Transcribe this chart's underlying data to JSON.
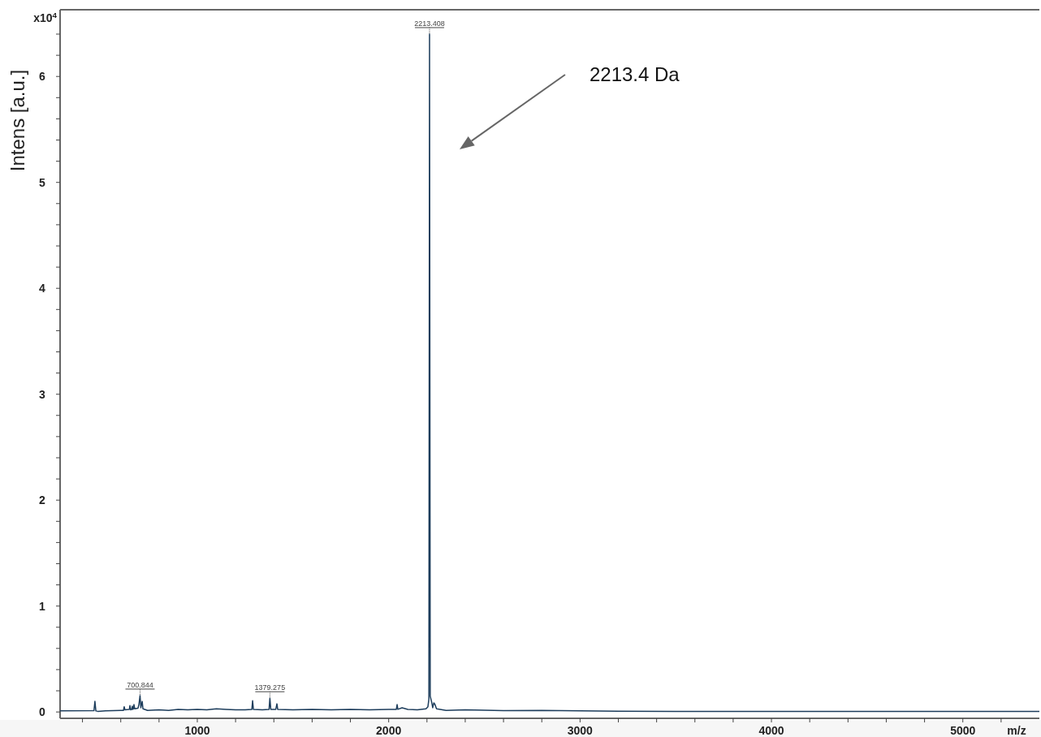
{
  "chart_data": {
    "type": "line",
    "ylabel": "Intens [a.u.]",
    "xlabel": "m/z",
    "color": "#1d3d5c",
    "marker": "none",
    "line_style": "solid",
    "xlim": [
      283,
      5400
    ],
    "xticks": [
      {
        "value": 400,
        "label": null
      },
      {
        "value": 600,
        "label": null
      },
      {
        "value": 800,
        "label": null
      },
      1000,
      {
        "value": 1200,
        "label": null
      },
      {
        "value": 1400,
        "label": null
      },
      {
        "value": 1600,
        "label": null
      },
      {
        "value": 1800,
        "label": null
      },
      2000,
      {
        "value": 2200,
        "label": null
      },
      {
        "value": 2400,
        "label": null
      },
      {
        "value": 2600,
        "label": null
      },
      {
        "value": 2800,
        "label": null
      },
      3000,
      {
        "value": 3200,
        "label": null
      },
      {
        "value": 3400,
        "label": null
      },
      {
        "value": 3600,
        "label": null
      },
      {
        "value": 3800,
        "label": null
      },
      4000,
      {
        "value": 4200,
        "label": null
      },
      {
        "value": 4400,
        "label": null
      },
      {
        "value": 4600,
        "label": null
      },
      {
        "value": 4800,
        "label": null
      },
      5000,
      {
        "value": 5200,
        "label": null
      }
    ],
    "ylim": [
      -0.06,
      6.63
    ],
    "yticks": [
      0,
      {
        "value": 0.2,
        "label": null
      },
      {
        "value": 0.4,
        "label": null
      },
      {
        "value": 0.6,
        "label": null
      },
      {
        "value": 0.8,
        "label": null
      },
      1,
      {
        "value": 1.2,
        "label": null
      },
      {
        "value": 1.4,
        "label": null
      },
      {
        "value": 1.6,
        "label": null
      },
      {
        "value": 1.8,
        "label": null
      },
      2,
      {
        "value": 2.2,
        "label": null
      },
      {
        "value": 2.4,
        "label": null
      },
      {
        "value": 2.6,
        "label": null
      },
      {
        "value": 2.8,
        "label": null
      },
      3,
      {
        "value": 3.2,
        "label": null
      },
      {
        "value": 3.4,
        "label": null
      },
      {
        "value": 3.6,
        "label": null
      },
      {
        "value": 3.8,
        "label": null
      },
      4,
      {
        "value": 4.2,
        "label": null
      },
      {
        "value": 4.4,
        "label": null
      },
      {
        "value": 4.6,
        "label": null
      },
      {
        "value": 4.8,
        "label": null
      },
      5,
      {
        "value": 5.2,
        "label": null
      },
      {
        "value": 5.4,
        "label": null
      },
      {
        "value": 5.6,
        "label": null
      },
      {
        "value": 5.8,
        "label": null
      },
      6,
      {
        "value": 6.2,
        "label": null
      },
      {
        "value": 6.4,
        "label": null
      }
    ],
    "x": [
      283,
      460,
      465,
      470,
      480,
      520,
      600,
      614,
      618,
      622,
      645,
      648,
      652,
      658,
      660,
      663,
      666,
      669,
      673,
      690,
      695,
      700.844,
      705,
      712,
      716,
      740,
      800,
      850,
      900,
      950,
      1000,
      1050,
      1100,
      1150,
      1200,
      1250,
      1285,
      1289,
      1293,
      1340,
      1375,
      1379.275,
      1384,
      1410,
      1416,
      1420,
      1500,
      1600,
      1700,
      1800,
      1900,
      2000,
      2040,
      2044,
      2048,
      2070,
      2100,
      2150,
      2195,
      2205,
      2210,
      2213.408,
      2217,
      2225,
      2230,
      2236,
      2242,
      2250,
      2300,
      2400,
      2600,
      2800,
      3000,
      3200,
      3500,
      4000,
      4500,
      5000,
      5400
    ],
    "values": [
      0.01,
      0.012,
      0.1,
      0.01,
      0.006,
      0.01,
      0.015,
      0.014,
      0.05,
      0.02,
      0.025,
      0.06,
      0.02,
      0.025,
      0.055,
      0.025,
      0.03,
      0.07,
      0.03,
      0.035,
      0.07,
      0.155,
      0.04,
      0.1,
      0.03,
      0.015,
      0.02,
      0.015,
      0.025,
      0.02,
      0.025,
      0.02,
      0.03,
      0.025,
      0.02,
      0.02,
      0.025,
      0.107,
      0.025,
      0.02,
      0.025,
      0.13,
      0.025,
      0.025,
      0.077,
      0.025,
      0.02,
      0.025,
      0.02,
      0.025,
      0.02,
      0.025,
      0.025,
      0.07,
      0.025,
      0.04,
      0.025,
      0.02,
      0.03,
      0.05,
      0.12,
      6.4,
      0.15,
      0.09,
      0.04,
      0.086,
      0.07,
      0.03,
      0.015,
      0.02,
      0.012,
      0.015,
      0.01,
      0.008,
      0.006,
      0.006,
      0.006,
      0.006,
      0.006
    ],
    "annotations": [
      "x10$^{4}$",
      "2213.4 Da",
      {
        "text": "700.844",
        "x": 700.844,
        "y": 0.155
      },
      {
        "text": "1379.275",
        "x": 1379.275,
        "y": 0.13
      },
      {
        "text": "2213.408",
        "x": 2213.408,
        "y": 6.4
      }
    ]
  }
}
